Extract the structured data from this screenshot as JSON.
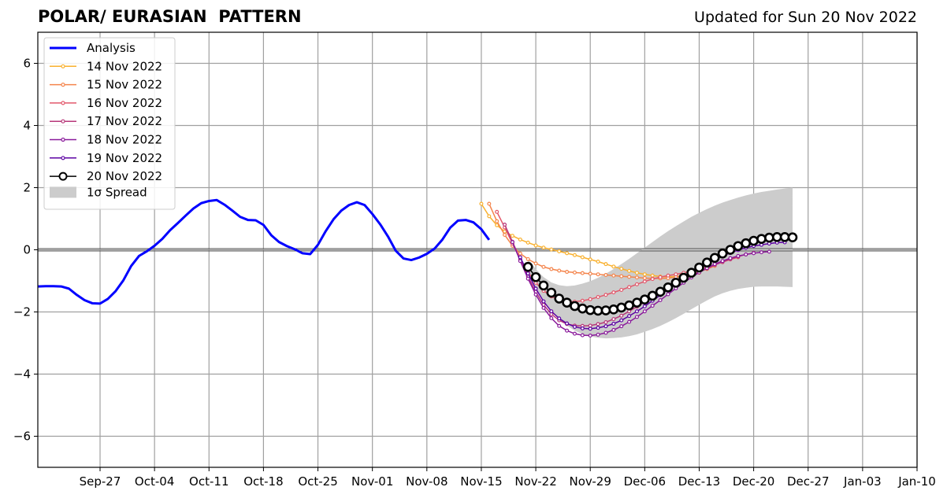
{
  "chart_data": {
    "type": "line",
    "title": "POLAR/ EURASIAN  PATTERN",
    "subtitle": "Updated for Sun 20 Nov 2022",
    "xlabel": "",
    "ylabel": "",
    "ylim": [
      -7,
      7
    ],
    "xlim": [
      "2022-09-19",
      "2023-01-10"
    ],
    "grid": true,
    "legend_position": "top-left",
    "x_ticks": [
      "Sep-27",
      "Oct-04",
      "Oct-11",
      "Oct-18",
      "Oct-25",
      "Nov-01",
      "Nov-08",
      "Nov-15",
      "Nov-22",
      "Nov-29",
      "Dec-06",
      "Dec-13",
      "Dec-20",
      "Dec-27",
      "Jan-03",
      "Jan-10"
    ],
    "y_ticks": [
      -6,
      -4,
      -2,
      0,
      2,
      4,
      6
    ],
    "y_tick_labels": [
      "−6",
      "−4",
      "−2",
      "0",
      "2",
      "4",
      "6"
    ],
    "analysis": {
      "name": "Analysis",
      "color": "#0000ff",
      "start": "2022-09-19",
      "values": [
        -1.18,
        -1.17,
        -1.17,
        -1.18,
        -1.25,
        -1.45,
        -1.62,
        -1.72,
        -1.73,
        -1.58,
        -1.33,
        -0.98,
        -0.52,
        -0.2,
        -0.05,
        0.13,
        0.35,
        0.63,
        0.86,
        1.1,
        1.33,
        1.5,
        1.57,
        1.6,
        1.45,
        1.26,
        1.06,
        0.96,
        0.95,
        0.8,
        0.47,
        0.25,
        0.12,
        0.02,
        -0.11,
        -0.14,
        0.16,
        0.6,
        0.98,
        1.26,
        1.44,
        1.53,
        1.44,
        1.15,
        0.82,
        0.43,
        -0.03,
        -0.28,
        -0.33,
        -0.25,
        -0.13,
        0.04,
        0.33,
        0.71,
        0.94,
        0.96,
        0.88,
        0.66,
        0.32
      ]
    },
    "forecasts": [
      {
        "name": "14 Nov 2022",
        "color": "#f9b02d",
        "start": "2022-11-15",
        "values": [
          1.48,
          1.08,
          0.79,
          0.59,
          0.45,
          0.33,
          0.23,
          0.14,
          0.07,
          0.01,
          -0.05,
          -0.11,
          -0.17,
          -0.24,
          -0.31,
          -0.38,
          -0.46,
          -0.54,
          -0.61,
          -0.68,
          -0.74,
          -0.79,
          -0.83,
          -0.86,
          -0.87,
          -0.86,
          -0.83,
          -0.79,
          -0.74
        ]
      },
      {
        "name": "15 Nov 2022",
        "color": "#f4844b",
        "start": "2022-11-16",
        "values": [
          1.48,
          0.92,
          0.48,
          0.13,
          -0.12,
          -0.3,
          -0.44,
          -0.55,
          -0.62,
          -0.67,
          -0.71,
          -0.73,
          -0.75,
          -0.77,
          -0.79,
          -0.81,
          -0.83,
          -0.85,
          -0.87,
          -0.89,
          -0.91,
          -0.92,
          -0.92,
          -0.91,
          -0.88,
          -0.84,
          -0.78,
          -0.71,
          -0.62,
          -0.52
        ]
      },
      {
        "name": "16 Nov 2022",
        "color": "#e2586b",
        "start": "2022-11-17",
        "values": [
          1.22,
          0.72,
          0.2,
          -0.3,
          -0.72,
          -1.06,
          -1.32,
          -1.5,
          -1.61,
          -1.67,
          -1.67,
          -1.64,
          -1.59,
          -1.52,
          -1.45,
          -1.37,
          -1.29,
          -1.2,
          -1.11,
          -1.02,
          -0.94,
          -0.88,
          -0.83,
          -0.79,
          -0.74,
          -0.69,
          -0.63,
          -0.56,
          -0.48,
          -0.4,
          -0.31,
          -0.24
        ]
      },
      {
        "name": "17 Nov 2022",
        "color": "#b73779",
        "start": "2022-11-18",
        "values": [
          0.81,
          0.26,
          -0.31,
          -0.86,
          -1.35,
          -1.77,
          -2.07,
          -2.27,
          -2.39,
          -2.44,
          -2.45,
          -2.44,
          -2.39,
          -2.33,
          -2.23,
          -2.12,
          -1.98,
          -1.83,
          -1.68,
          -1.52,
          -1.37,
          -1.22,
          -1.09,
          -0.96,
          -0.83,
          -0.71,
          -0.6,
          -0.49,
          -0.39,
          -0.3,
          -0.22,
          -0.15,
          -0.1
        ]
      },
      {
        "name": "18 Nov 2022",
        "color": "#8a1a9b",
        "start": "2022-11-19",
        "values": [
          0.25,
          -0.36,
          -0.93,
          -1.44,
          -1.87,
          -2.2,
          -2.45,
          -2.6,
          -2.7,
          -2.75,
          -2.76,
          -2.73,
          -2.67,
          -2.58,
          -2.46,
          -2.32,
          -2.16,
          -1.98,
          -1.8,
          -1.62,
          -1.43,
          -1.24,
          -1.06,
          -0.89,
          -0.73,
          -0.59,
          -0.46,
          -0.36,
          -0.27,
          -0.2,
          -0.15,
          -0.11,
          -0.08,
          -0.06
        ]
      },
      {
        "name": "19 Nov 2022",
        "color": "#5c02a3",
        "start": "2022-11-20",
        "values": [
          -0.24,
          -0.76,
          -1.25,
          -1.66,
          -1.98,
          -2.21,
          -2.37,
          -2.48,
          -2.53,
          -2.54,
          -2.51,
          -2.46,
          -2.38,
          -2.27,
          -2.13,
          -1.98,
          -1.82,
          -1.64,
          -1.46,
          -1.28,
          -1.1,
          -0.92,
          -0.76,
          -0.6,
          -0.45,
          -0.32,
          -0.2,
          -0.1,
          -0.01,
          0.06,
          0.12,
          0.16,
          0.2,
          0.23,
          0.24
        ]
      },
      {
        "name": "20 Nov 2022",
        "color": "#000000",
        "start": "2022-11-21",
        "values": [
          -0.55,
          -0.88,
          -1.15,
          -1.38,
          -1.57,
          -1.7,
          -1.81,
          -1.89,
          -1.94,
          -1.96,
          -1.95,
          -1.92,
          -1.86,
          -1.79,
          -1.7,
          -1.6,
          -1.48,
          -1.35,
          -1.21,
          -1.06,
          -0.9,
          -0.74,
          -0.57,
          -0.41,
          -0.26,
          -0.12,
          0.0,
          0.12,
          0.21,
          0.29,
          0.35,
          0.39,
          0.41,
          0.41,
          0.4
        ]
      }
    ],
    "spread": {
      "name": "1σ Spread",
      "color": "#cccccc",
      "start": "2022-11-21",
      "upper": [
        -0.3,
        -0.62,
        -0.88,
        -1.05,
        -1.14,
        -1.17,
        -1.15,
        -1.09,
        -1.01,
        -0.9,
        -0.77,
        -0.62,
        -0.46,
        -0.29,
        -0.11,
        0.07,
        0.25,
        0.43,
        0.6,
        0.76,
        0.91,
        1.06,
        1.19,
        1.31,
        1.42,
        1.52,
        1.6,
        1.68,
        1.75,
        1.81,
        1.86,
        1.9,
        1.94,
        1.97,
        2.0
      ],
      "lower": [
        -0.8,
        -1.22,
        -1.62,
        -1.95,
        -2.23,
        -2.44,
        -2.6,
        -2.71,
        -2.79,
        -2.83,
        -2.85,
        -2.84,
        -2.82,
        -2.78,
        -2.72,
        -2.64,
        -2.55,
        -2.45,
        -2.33,
        -2.2,
        -2.06,
        -1.91,
        -1.77,
        -1.63,
        -1.5,
        -1.4,
        -1.32,
        -1.26,
        -1.22,
        -1.19,
        -1.18,
        -1.18,
        -1.18,
        -1.19,
        -1.2
      ]
    }
  },
  "legend": {
    "analysis_label": "Analysis",
    "items": [
      "14 Nov 2022",
      "15 Nov 2022",
      "16 Nov 2022",
      "17 Nov 2022",
      "18 Nov 2022",
      "19 Nov 2022",
      "20 Nov 2022"
    ],
    "spread_label": "1σ Spread"
  }
}
